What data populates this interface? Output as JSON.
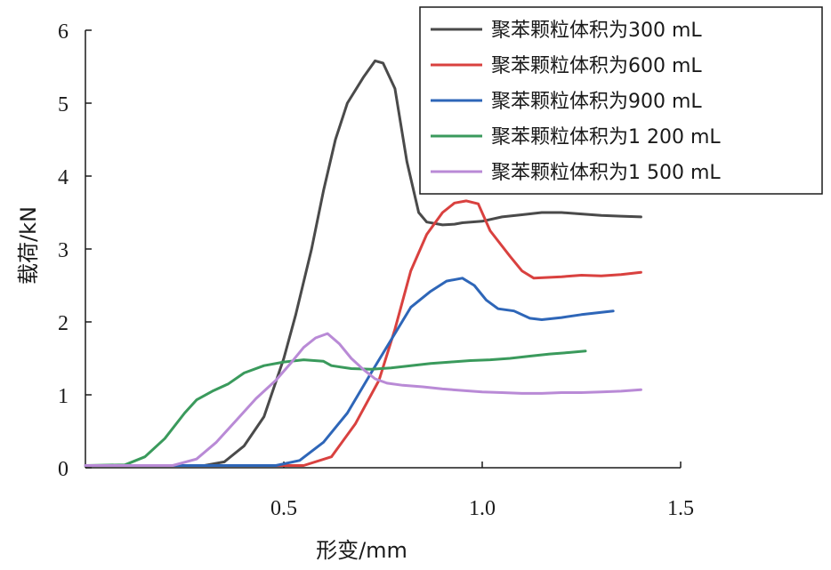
{
  "chart_data": {
    "type": "line",
    "title": "",
    "xlabel": "形变/mm",
    "ylabel": "载荷/kN",
    "xlim": [
      0,
      1.5
    ],
    "ylim": [
      0,
      6
    ],
    "x_ticks": [
      {
        "value": 0.5,
        "label": "0.5"
      },
      {
        "value": 1.0,
        "label": "1.0"
      },
      {
        "value": 1.5,
        "label": "1.5"
      }
    ],
    "y_ticks": [
      {
        "value": 0,
        "label": "0"
      },
      {
        "value": 1,
        "label": "1"
      },
      {
        "value": 2,
        "label": "2"
      },
      {
        "value": 3,
        "label": "3"
      },
      {
        "value": 4,
        "label": "4"
      },
      {
        "value": 5,
        "label": "5"
      },
      {
        "value": 6,
        "label": "6"
      }
    ],
    "grid": false,
    "legend_position": "top-right",
    "series": [
      {
        "name": "聚苯颗粒体积为300 mL",
        "color": "#4a4a4a",
        "points": [
          [
            0,
            0.03
          ],
          [
            0.3,
            0.03
          ],
          [
            0.35,
            0.08
          ],
          [
            0.4,
            0.3
          ],
          [
            0.45,
            0.7
          ],
          [
            0.5,
            1.5
          ],
          [
            0.53,
            2.1
          ],
          [
            0.57,
            3.0
          ],
          [
            0.6,
            3.8
          ],
          [
            0.63,
            4.5
          ],
          [
            0.66,
            5.0
          ],
          [
            0.7,
            5.35
          ],
          [
            0.73,
            5.58
          ],
          [
            0.75,
            5.55
          ],
          [
            0.78,
            5.2
          ],
          [
            0.81,
            4.2
          ],
          [
            0.84,
            3.5
          ],
          [
            0.86,
            3.37
          ],
          [
            0.9,
            3.33
          ],
          [
            0.93,
            3.34
          ],
          [
            0.95,
            3.36
          ],
          [
            1.0,
            3.38
          ],
          [
            1.05,
            3.44
          ],
          [
            1.1,
            3.47
          ],
          [
            1.15,
            3.5
          ],
          [
            1.2,
            3.5
          ],
          [
            1.25,
            3.48
          ],
          [
            1.3,
            3.46
          ],
          [
            1.35,
            3.45
          ],
          [
            1.4,
            3.44
          ]
        ]
      },
      {
        "name": "聚苯颗粒体积为600 mL",
        "color": "#d9413f",
        "points": [
          [
            0,
            0.03
          ],
          [
            0.55,
            0.03
          ],
          [
            0.62,
            0.15
          ],
          [
            0.68,
            0.6
          ],
          [
            0.74,
            1.2
          ],
          [
            0.78,
            1.9
          ],
          [
            0.82,
            2.7
          ],
          [
            0.86,
            3.2
          ],
          [
            0.9,
            3.5
          ],
          [
            0.93,
            3.63
          ],
          [
            0.96,
            3.66
          ],
          [
            0.99,
            3.62
          ],
          [
            1.02,
            3.25
          ],
          [
            1.07,
            2.9
          ],
          [
            1.1,
            2.7
          ],
          [
            1.13,
            2.6
          ],
          [
            1.2,
            2.62
          ],
          [
            1.25,
            2.64
          ],
          [
            1.3,
            2.63
          ],
          [
            1.35,
            2.65
          ],
          [
            1.4,
            2.68
          ]
        ]
      },
      {
        "name": "聚苯颗粒体积为900 mL",
        "color": "#2e66b8",
        "points": [
          [
            0,
            0.03
          ],
          [
            0.48,
            0.03
          ],
          [
            0.54,
            0.1
          ],
          [
            0.6,
            0.35
          ],
          [
            0.66,
            0.75
          ],
          [
            0.72,
            1.3
          ],
          [
            0.77,
            1.75
          ],
          [
            0.82,
            2.2
          ],
          [
            0.87,
            2.42
          ],
          [
            0.91,
            2.56
          ],
          [
            0.95,
            2.6
          ],
          [
            0.98,
            2.5
          ],
          [
            1.01,
            2.3
          ],
          [
            1.04,
            2.18
          ],
          [
            1.08,
            2.15
          ],
          [
            1.12,
            2.05
          ],
          [
            1.15,
            2.03
          ],
          [
            1.2,
            2.06
          ],
          [
            1.25,
            2.1
          ],
          [
            1.3,
            2.13
          ],
          [
            1.33,
            2.15
          ]
        ]
      },
      {
        "name": "聚苯颗粒体积为1 200 mL",
        "color": "#3a9a5c",
        "points": [
          [
            0,
            0.03
          ],
          [
            0.1,
            0.04
          ],
          [
            0.15,
            0.15
          ],
          [
            0.2,
            0.4
          ],
          [
            0.25,
            0.75
          ],
          [
            0.28,
            0.93
          ],
          [
            0.32,
            1.05
          ],
          [
            0.36,
            1.15
          ],
          [
            0.4,
            1.3
          ],
          [
            0.45,
            1.4
          ],
          [
            0.5,
            1.45
          ],
          [
            0.55,
            1.48
          ],
          [
            0.6,
            1.46
          ],
          [
            0.62,
            1.4
          ],
          [
            0.67,
            1.36
          ],
          [
            0.72,
            1.35
          ],
          [
            0.77,
            1.37
          ],
          [
            0.82,
            1.4
          ],
          [
            0.87,
            1.43
          ],
          [
            0.92,
            1.45
          ],
          [
            0.97,
            1.47
          ],
          [
            1.02,
            1.48
          ],
          [
            1.07,
            1.5
          ],
          [
            1.12,
            1.53
          ],
          [
            1.17,
            1.56
          ],
          [
            1.22,
            1.58
          ],
          [
            1.26,
            1.6
          ]
        ]
      },
      {
        "name": "聚苯颗粒体积为1 500 mL",
        "color": "#b98ad6",
        "points": [
          [
            0,
            0.03
          ],
          [
            0.22,
            0.03
          ],
          [
            0.28,
            0.12
          ],
          [
            0.33,
            0.35
          ],
          [
            0.38,
            0.65
          ],
          [
            0.43,
            0.95
          ],
          [
            0.48,
            1.2
          ],
          [
            0.52,
            1.45
          ],
          [
            0.55,
            1.65
          ],
          [
            0.58,
            1.78
          ],
          [
            0.61,
            1.84
          ],
          [
            0.64,
            1.7
          ],
          [
            0.67,
            1.5
          ],
          [
            0.7,
            1.35
          ],
          [
            0.73,
            1.22
          ],
          [
            0.76,
            1.16
          ],
          [
            0.8,
            1.13
          ],
          [
            0.85,
            1.11
          ],
          [
            0.9,
            1.08
          ],
          [
            0.95,
            1.06
          ],
          [
            1.0,
            1.04
          ],
          [
            1.05,
            1.03
          ],
          [
            1.1,
            1.02
          ],
          [
            1.15,
            1.02
          ],
          [
            1.2,
            1.03
          ],
          [
            1.25,
            1.03
          ],
          [
            1.3,
            1.04
          ],
          [
            1.35,
            1.05
          ],
          [
            1.4,
            1.07
          ]
        ]
      }
    ]
  }
}
